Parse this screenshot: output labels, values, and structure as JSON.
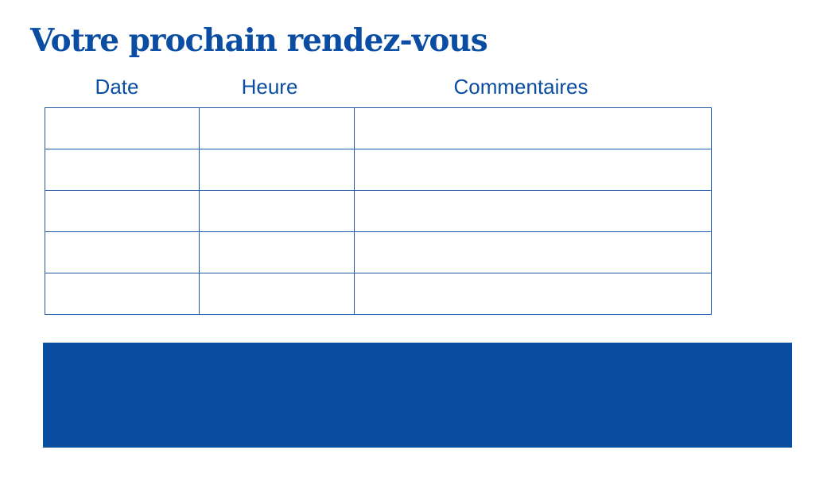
{
  "title": "Votre prochain rendez-vous",
  "columns": [
    "Date",
    "Heure",
    "Commentaires"
  ],
  "rows": [
    [
      "",
      "",
      ""
    ],
    [
      "",
      "",
      ""
    ],
    [
      "",
      "",
      ""
    ],
    [
      "",
      "",
      ""
    ],
    [
      "",
      "",
      ""
    ]
  ],
  "colors": {
    "brand_blue": "#0a4da2",
    "band": "#094ea0"
  }
}
